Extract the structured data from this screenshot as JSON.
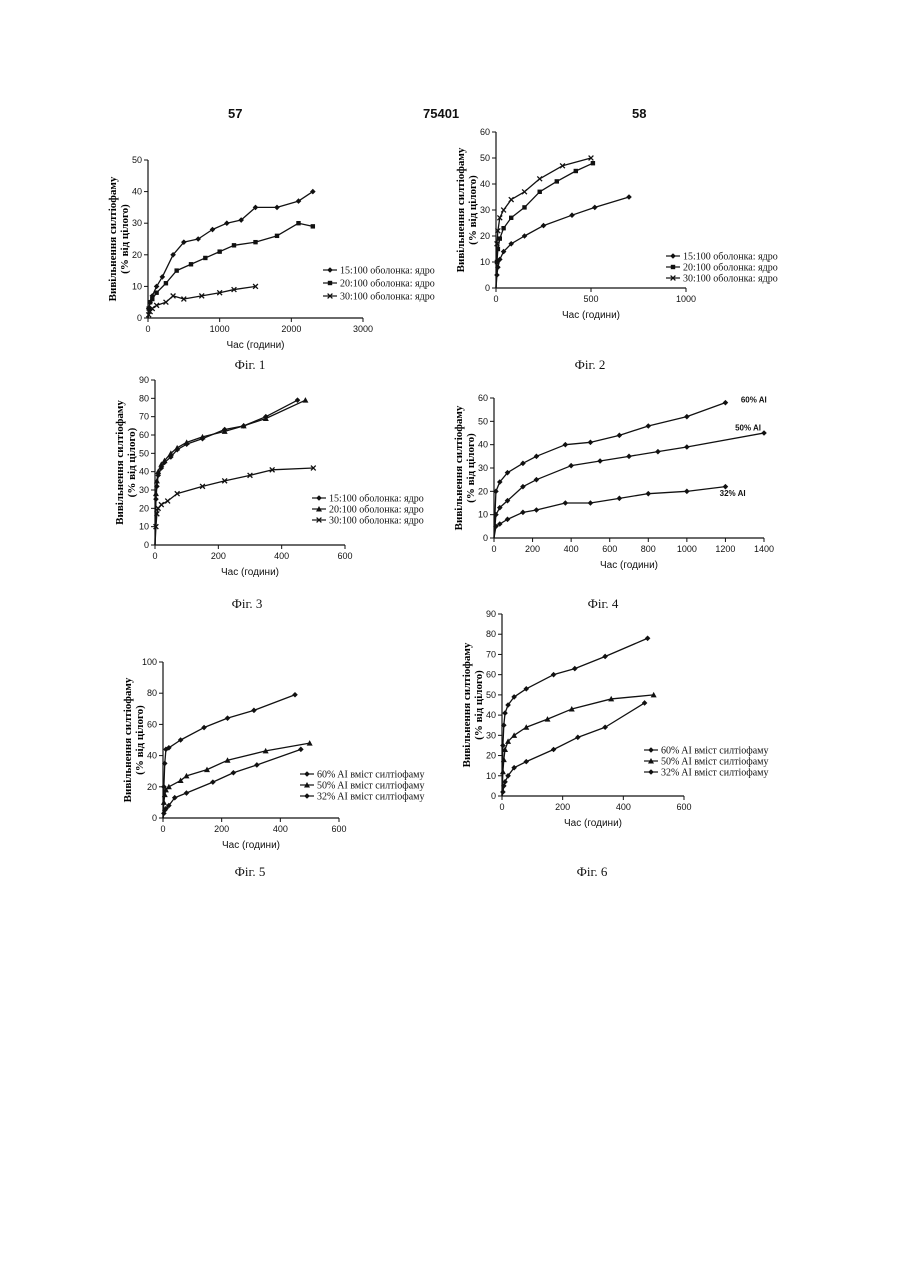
{
  "header": {
    "left": "57",
    "center": "75401",
    "right": "58"
  },
  "chart_data": [
    {
      "type": "line",
      "caption": "Фіг. 1",
      "ylabel_line1": "Вивільнення силтіофаму",
      "ylabel_line2": "(% від цілого)",
      "xlabel": "Час (години)",
      "xlim": [
        0,
        3000
      ],
      "ylim": [
        0,
        50
      ],
      "xticks": [
        0,
        1000,
        2000,
        3000
      ],
      "yticks": [
        0,
        10,
        20,
        30,
        40,
        50
      ],
      "legend_position": "right",
      "series": [
        {
          "name": "15:100 оболонка: ядро",
          "marker": "diamond",
          "x": [
            0,
            10,
            30,
            60,
            120,
            200,
            350,
            500,
            700,
            900,
            1100,
            1300,
            1500,
            1800,
            2100,
            2300
          ],
          "y": [
            0,
            3,
            5,
            7,
            10,
            13,
            20,
            24,
            25,
            28,
            30,
            31,
            35,
            35,
            37,
            40
          ]
        },
        {
          "name": "20:100 оболонка: ядро",
          "marker": "square",
          "x": [
            0,
            10,
            30,
            60,
            120,
            250,
            400,
            600,
            800,
            1000,
            1200,
            1500,
            1800,
            2100,
            2300
          ],
          "y": [
            0,
            3,
            5,
            6,
            8,
            11,
            15,
            17,
            19,
            21,
            23,
            24,
            26,
            30,
            29
          ]
        },
        {
          "name": "30:100 оболонка: ядро",
          "marker": "x",
          "x": [
            0,
            10,
            30,
            60,
            120,
            250,
            350,
            500,
            750,
            1000,
            1200,
            1500
          ],
          "y": [
            0,
            1,
            2,
            3,
            4,
            5,
            7,
            6,
            7,
            8,
            9,
            10
          ]
        }
      ]
    },
    {
      "type": "line",
      "caption": "Фіг. 2",
      "ylabel_line1": "Вивільнення силтіофаму",
      "ylabel_line2": "(% від цілого)",
      "xlabel": "Час (години)",
      "xlim": [
        0,
        1000
      ],
      "ylim": [
        0,
        60
      ],
      "xticks": [
        0,
        500,
        1000
      ],
      "yticks": [
        0,
        10,
        20,
        30,
        40,
        50,
        60
      ],
      "legend_position": "right",
      "series": [
        {
          "name": "15:100 оболонка: ядро",
          "marker": "diamond",
          "x": [
            0,
            5,
            10,
            20,
            40,
            80,
            150,
            250,
            400,
            520,
            700
          ],
          "y": [
            0,
            5,
            8,
            11,
            14,
            17,
            20,
            24,
            28,
            31,
            35
          ]
        },
        {
          "name": "20:100 оболонка: ядро",
          "marker": "square",
          "x": [
            0,
            5,
            10,
            20,
            40,
            80,
            150,
            230,
            320,
            420,
            510
          ],
          "y": [
            0,
            10,
            15,
            19,
            23,
            27,
            31,
            37,
            41,
            45,
            48
          ]
        },
        {
          "name": "30:100 оболонка: ядро",
          "marker": "x",
          "x": [
            0,
            5,
            10,
            20,
            40,
            80,
            150,
            230,
            350,
            500
          ],
          "y": [
            0,
            17,
            22,
            27,
            30,
            34,
            37,
            42,
            47,
            50
          ]
        }
      ]
    },
    {
      "type": "line",
      "caption": "Фіг. 3",
      "ylabel_line1": "Вивільнення силтіофаму",
      "ylabel_line2": "(% від цілого)",
      "xlabel": "Час (години)",
      "xlim": [
        0,
        600
      ],
      "ylim": [
        0,
        90
      ],
      "xticks": [
        0,
        200,
        400,
        600
      ],
      "yticks": [
        0,
        10,
        20,
        30,
        40,
        50,
        60,
        70,
        80,
        90
      ],
      "legend_position": "right",
      "series": [
        {
          "name": "15:100 оболонка: ядро",
          "marker": "diamond",
          "x": [
            0,
            3,
            6,
            10,
            20,
            30,
            50,
            70,
            100,
            150,
            220,
            280,
            350,
            450
          ],
          "y": [
            0,
            25,
            32,
            38,
            42,
            45,
            48,
            52,
            55,
            58,
            63,
            65,
            70,
            79
          ]
        },
        {
          "name": "20:100 оболонка: ядро",
          "marker": "triangle",
          "x": [
            0,
            3,
            6,
            10,
            20,
            30,
            50,
            70,
            100,
            150,
            220,
            280,
            350,
            475
          ],
          "y": [
            0,
            28,
            35,
            40,
            44,
            46,
            50,
            53,
            56,
            59,
            62,
            65,
            69,
            79
          ]
        },
        {
          "name": "30:100 оболонка: ядро",
          "marker": "x",
          "x": [
            0,
            3,
            6,
            10,
            20,
            40,
            70,
            150,
            220,
            300,
            370,
            500
          ],
          "y": [
            0,
            10,
            17,
            20,
            22,
            24,
            28,
            32,
            35,
            38,
            41,
            42
          ]
        }
      ]
    },
    {
      "type": "line",
      "caption": "Фіг. 4",
      "ylabel_line1": "Вивільнення силтіофаму",
      "ylabel_line2": "(% від цілого)",
      "xlabel": "Час (години)",
      "xlim": [
        0,
        1400
      ],
      "ylim": [
        0,
        60
      ],
      "xticks": [
        0,
        200,
        400,
        600,
        800,
        1000,
        1200,
        1400
      ],
      "yticks": [
        0,
        10,
        20,
        30,
        40,
        50,
        60
      ],
      "legend_position": "none",
      "series": [
        {
          "name": "60% AI",
          "marker": "diamond",
          "x": [
            0,
            10,
            30,
            70,
            150,
            220,
            370,
            500,
            650,
            800,
            1000,
            1200
          ],
          "y": [
            0,
            20,
            24,
            28,
            32,
            35,
            40,
            41,
            44,
            48,
            52,
            58
          ]
        },
        {
          "name": "50% AI",
          "marker": "diamond",
          "x": [
            0,
            10,
            30,
            70,
            150,
            220,
            400,
            550,
            700,
            850,
            1000,
            1400
          ],
          "y": [
            0,
            10,
            13,
            16,
            22,
            25,
            31,
            33,
            35,
            37,
            39,
            45
          ]
        },
        {
          "name": "32% AI",
          "marker": "diamond",
          "x": [
            0,
            10,
            30,
            70,
            150,
            220,
            370,
            500,
            650,
            800,
            1000,
            1200
          ],
          "y": [
            0,
            5,
            6,
            8,
            11,
            12,
            15,
            15,
            17,
            19,
            20,
            22
          ]
        }
      ]
    },
    {
      "type": "line",
      "caption": "Фіг. 5",
      "ylabel_line1": "Вивільнення силтіофаму",
      "ylabel_line2": "(% від цілого)",
      "xlabel": "Час (години)",
      "xlim": [
        0,
        600
      ],
      "ylim": [
        0,
        100
      ],
      "xticks": [
        0,
        200,
        400,
        600
      ],
      "yticks": [
        0,
        20,
        40,
        60,
        80,
        100
      ],
      "legend_position": "right",
      "series": [
        {
          "name": "60% AI вміст силтіофаму",
          "marker": "diamond",
          "x": [
            0,
            3,
            6,
            10,
            20,
            60,
            140,
            220,
            310,
            450
          ],
          "y": [
            0,
            20,
            35,
            44,
            45,
            50,
            58,
            64,
            69,
            79
          ]
        },
        {
          "name": "50% AI вміст силтіофаму",
          "marker": "triangle",
          "x": [
            0,
            3,
            6,
            10,
            20,
            60,
            80,
            150,
            220,
            350,
            500
          ],
          "y": [
            0,
            10,
            15,
            18,
            20,
            24,
            27,
            31,
            37,
            43,
            48
          ]
        },
        {
          "name": "32% AI вміст силтіофаму",
          "marker": "diamond",
          "x": [
            0,
            3,
            6,
            10,
            20,
            40,
            80,
            170,
            240,
            320,
            470
          ],
          "y": [
            0,
            3,
            5,
            6,
            8,
            13,
            16,
            23,
            29,
            34,
            44
          ]
        }
      ]
    },
    {
      "type": "line",
      "caption": "Фіг. 6",
      "ylabel_line1": "Вивільнення силтіофаму",
      "ylabel_line2": "(% від цілого)",
      "xlabel": "Час (години)",
      "xlim": [
        0,
        600
      ],
      "ylim": [
        0,
        90
      ],
      "xticks": [
        0,
        200,
        400,
        600
      ],
      "yticks": [
        0,
        10,
        20,
        30,
        40,
        50,
        60,
        70,
        80,
        90
      ],
      "legend_position": "right",
      "series": [
        {
          "name": "60% AI вміст силтіофаму",
          "marker": "diamond",
          "x": [
            0,
            3,
            6,
            10,
            20,
            40,
            80,
            170,
            240,
            340,
            480
          ],
          "y": [
            0,
            25,
            35,
            41,
            45,
            49,
            53,
            60,
            63,
            69,
            78
          ]
        },
        {
          "name": "50% AI вміст силтіофаму",
          "marker": "triangle",
          "x": [
            0,
            3,
            6,
            10,
            20,
            40,
            80,
            150,
            230,
            360,
            500
          ],
          "y": [
            0,
            12,
            18,
            23,
            27,
            30,
            34,
            38,
            43,
            48,
            50
          ]
        },
        {
          "name": "32% AI вміст силтіофаму",
          "marker": "diamond",
          "x": [
            0,
            3,
            6,
            10,
            20,
            40,
            80,
            170,
            250,
            340,
            470
          ],
          "y": [
            0,
            2,
            5,
            7,
            10,
            14,
            17,
            23,
            29,
            34,
            46
          ]
        }
      ]
    }
  ]
}
